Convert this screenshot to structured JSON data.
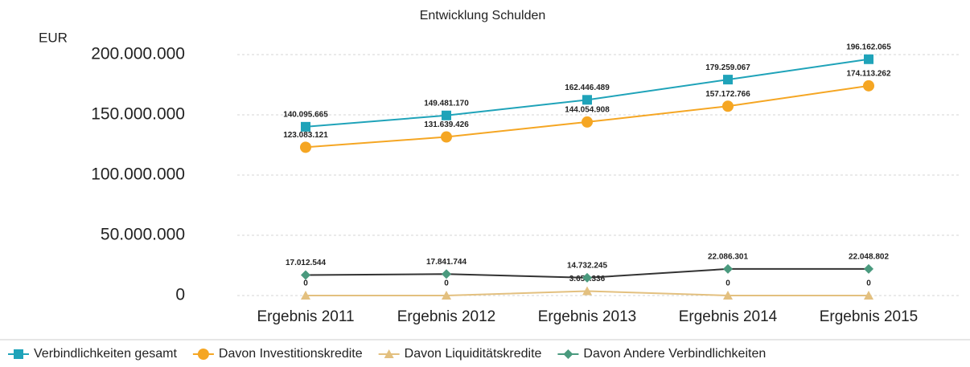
{
  "chart_data": {
    "type": "line",
    "title": "Entwicklung Schulden",
    "y_label": "EUR",
    "categories": [
      "Ergebnis 2011",
      "Ergebnis 2012",
      "Ergebnis 2013",
      "Ergebnis 2014",
      "Ergebnis 2015"
    ],
    "ylim": [
      0,
      200000000
    ],
    "yticks": [
      0,
      {
        "value": 50000000,
        "label": "50.000.000"
      },
      {
        "value": 100000000,
        "label": "100.000.000"
      },
      {
        "value": 150000000,
        "label": "150.000.000"
      },
      {
        "value": 200000000,
        "label": "200.000.000"
      }
    ],
    "grid": true,
    "legend": "bottom",
    "series": [
      {
        "name": "Verbindlichkeiten gesamt",
        "color": "#1fa3b9",
        "marker": "square",
        "values": [
          140095665,
          149481170,
          162446489,
          179259067,
          196162065
        ],
        "value_labels": [
          "140.095.665",
          "149.481.170",
          "162.446.489",
          "179.259.067",
          "196.162.065"
        ]
      },
      {
        "name": "Davon Investitionskredite",
        "color": "#f5a623",
        "marker": "circle",
        "values": [
          123083121,
          131639426,
          144054908,
          157172766,
          174113262
        ],
        "value_labels": [
          "123.083.121",
          "131.639.426",
          "144.054.908",
          "157.172.766",
          "174.113.262"
        ]
      },
      {
        "name": "Davon Liquiditätskredite",
        "color": "#e3c07f",
        "marker": "triangle",
        "values": [
          0,
          0,
          3659336,
          0,
          0
        ],
        "value_labels": [
          "0",
          "0",
          "3.659.336",
          "0",
          "0"
        ]
      },
      {
        "name": "Davon Andere Verbindlichkeiten",
        "color": "#4a9a7e",
        "line_color": "#333333",
        "marker": "diamond",
        "values": [
          17012544,
          17841744,
          14732245,
          22086301,
          22048802
        ],
        "value_labels": [
          "17.012.544",
          "17.841.744",
          "14.732.245",
          "22.086.301",
          "22.048.802"
        ]
      }
    ]
  }
}
